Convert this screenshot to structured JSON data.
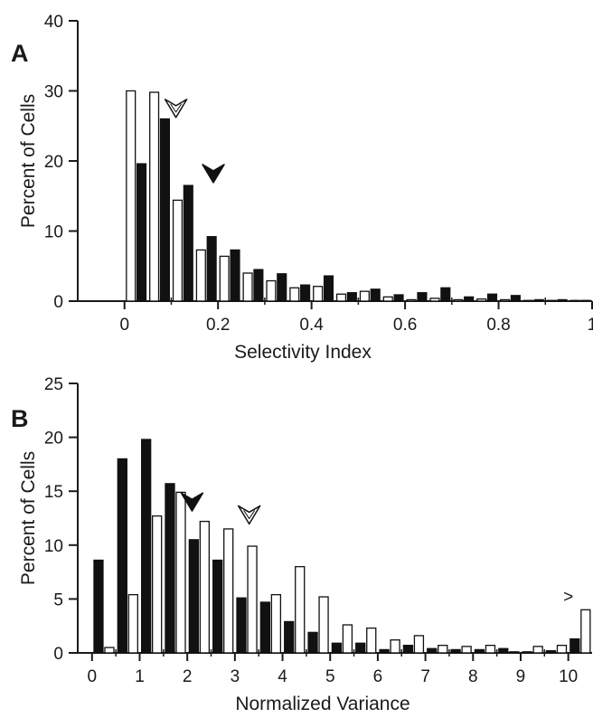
{
  "figure": {
    "label": "Figure"
  },
  "chart_data": [
    {
      "type": "bar",
      "panel": "A",
      "xlabel": "Selectivity Index",
      "ylabel": "Percent of Cells",
      "xlim": [
        -0.1,
        1.0
      ],
      "ylim": [
        0,
        40
      ],
      "yticks": [
        0,
        10,
        20,
        30,
        40
      ],
      "xticks": [
        0,
        0.2,
        0.4,
        0.6,
        0.8,
        1
      ],
      "xtick_labels": [
        "0",
        "0.2",
        "0.4",
        "0.6",
        "0.8",
        "1"
      ],
      "bin_centers": [
        0.025,
        0.075,
        0.125,
        0.175,
        0.225,
        0.275,
        0.325,
        0.375,
        0.425,
        0.475,
        0.525,
        0.575,
        0.625,
        0.675,
        0.725,
        0.775,
        0.825,
        0.875,
        0.925,
        0.975
      ],
      "series": [
        {
          "style": "open",
          "values": [
            30.0,
            29.8,
            14.4,
            7.3,
            6.4,
            4.0,
            2.9,
            1.9,
            2.1,
            1.0,
            1.4,
            0.6,
            0.2,
            0.4,
            0.2,
            0.3,
            0.2,
            0.1,
            0.1,
            0.1
          ]
        },
        {
          "style": "filled",
          "values": [
            19.6,
            26.0,
            16.5,
            9.2,
            7.3,
            4.5,
            3.9,
            2.3,
            3.6,
            1.2,
            1.7,
            0.9,
            1.2,
            1.9,
            0.6,
            1.0,
            0.8,
            0.2,
            0.2,
            0.1
          ]
        }
      ],
      "markers": [
        {
          "style": "open-arrowhead",
          "x": 0.11,
          "y": 27.5
        },
        {
          "style": "filled-arrowhead",
          "x": 0.19,
          "y": 18.2
        }
      ],
      "grid": false
    },
    {
      "type": "bar",
      "panel": "B",
      "xlabel": "Normalized Variance",
      "ylabel": "Percent of Cells",
      "xlim": [
        -0.3,
        10.5
      ],
      "ylim": [
        0,
        25
      ],
      "yticks": [
        0,
        5,
        10,
        15,
        20,
        25
      ],
      "xticks": [
        0,
        1,
        2,
        3,
        4,
        5,
        6,
        7,
        8,
        9,
        10
      ],
      "xtick_labels": [
        "0",
        "1",
        "2",
        "3",
        "4",
        "5",
        "6",
        "7",
        "8",
        "9",
        "10"
      ],
      "bin_centers": [
        0.25,
        0.75,
        1.25,
        1.75,
        2.25,
        2.75,
        3.25,
        3.75,
        4.25,
        4.75,
        5.25,
        5.75,
        6.25,
        6.75,
        7.25,
        7.75,
        8.25,
        8.75,
        9.25,
        9.75,
        10.25
      ],
      "series": [
        {
          "style": "filled",
          "values": [
            8.6,
            18.0,
            19.8,
            15.7,
            10.5,
            8.6,
            5.1,
            4.7,
            2.9,
            1.9,
            0.9,
            0.9,
            0.3,
            0.7,
            0.4,
            0.3,
            0.3,
            0.4,
            0.1,
            0.2,
            1.3
          ]
        },
        {
          "style": "open",
          "values": [
            0.5,
            5.4,
            12.7,
            14.9,
            12.2,
            11.5,
            9.9,
            5.4,
            8.0,
            5.2,
            2.6,
            2.3,
            1.2,
            1.6,
            0.7,
            0.6,
            0.7,
            0.1,
            0.6,
            0.7,
            4.0
          ]
        }
      ],
      "markers": [
        {
          "style": "filled-arrowhead",
          "x": 2.1,
          "y": 14.0
        },
        {
          "style": "open-arrowhead",
          "x": 3.3,
          "y": 12.8
        }
      ],
      "annotations": [
        {
          "text": ">",
          "x": 10.0,
          "y": 4.7
        }
      ],
      "grid": false
    }
  ]
}
